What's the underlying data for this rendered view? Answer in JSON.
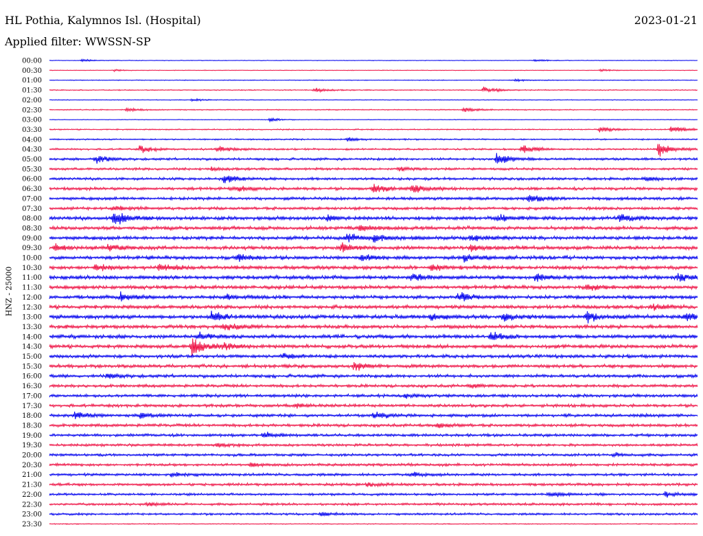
{
  "header": {
    "station": "HL Pothia, Kalymnos Isl. (Hospital)",
    "date": "2023-01-21",
    "filter": "Applied filter: WWSSN-SP"
  },
  "chart_data": {
    "type": "line",
    "subtype": "helicorder",
    "ylabel": "HNZ - 25000",
    "minutes_per_line": 30,
    "line_colors": [
      "#0000ee",
      "#ee1144"
    ],
    "rows": [
      {
        "label": "00:00",
        "noise": 0.5,
        "events": [
          {
            "t": 0.05,
            "amp": 2
          },
          {
            "t": 0.75,
            "amp": 2
          }
        ]
      },
      {
        "label": "00:30",
        "noise": 0.5,
        "events": [
          {
            "t": 0.1,
            "amp": 1.5
          },
          {
            "t": 0.85,
            "amp": 2
          }
        ]
      },
      {
        "label": "01:00",
        "noise": 0.6,
        "events": [
          {
            "t": 0.72,
            "amp": 2
          }
        ]
      },
      {
        "label": "01:30",
        "noise": 0.8,
        "events": [
          {
            "t": 0.41,
            "amp": 4
          },
          {
            "t": 0.67,
            "amp": 5
          }
        ]
      },
      {
        "label": "02:00",
        "noise": 0.6,
        "events": [
          {
            "t": 0.22,
            "amp": 2
          }
        ]
      },
      {
        "label": "02:30",
        "noise": 0.8,
        "events": [
          {
            "t": 0.12,
            "amp": 3
          },
          {
            "t": 0.64,
            "amp": 5
          }
        ]
      },
      {
        "label": "03:00",
        "noise": 0.5,
        "events": [
          {
            "t": 0.34,
            "amp": 3
          }
        ]
      },
      {
        "label": "03:30",
        "noise": 1.0,
        "events": [
          {
            "t": 0.85,
            "amp": 5
          },
          {
            "t": 0.96,
            "amp": 7
          }
        ]
      },
      {
        "label": "04:00",
        "noise": 1.2,
        "events": [
          {
            "t": 0.46,
            "amp": 3
          }
        ]
      },
      {
        "label": "04:30",
        "noise": 1.5,
        "events": [
          {
            "t": 0.14,
            "amp": 6
          },
          {
            "t": 0.26,
            "amp": 5
          },
          {
            "t": 0.73,
            "amp": 9
          },
          {
            "t": 0.94,
            "amp": 12
          }
        ]
      },
      {
        "label": "05:00",
        "noise": 2.0,
        "events": [
          {
            "t": 0.07,
            "amp": 8
          },
          {
            "t": 0.69,
            "amp": 10
          }
        ]
      },
      {
        "label": "05:30",
        "noise": 2.0,
        "events": [
          {
            "t": 0.25,
            "amp": 3
          },
          {
            "t": 0.54,
            "amp": 3
          }
        ]
      },
      {
        "label": "06:00",
        "noise": 2.2,
        "events": [
          {
            "t": 0.27,
            "amp": 8
          },
          {
            "t": 0.92,
            "amp": 3
          }
        ]
      },
      {
        "label": "06:30",
        "noise": 2.5,
        "events": [
          {
            "t": 0.29,
            "amp": 4
          },
          {
            "t": 0.5,
            "amp": 9
          },
          {
            "t": 0.56,
            "amp": 7
          }
        ]
      },
      {
        "label": "07:00",
        "noise": 2.5,
        "events": [
          {
            "t": 0.74,
            "amp": 7
          }
        ]
      },
      {
        "label": "07:30",
        "noise": 2.5,
        "events": [
          {
            "t": 0.1,
            "amp": 4
          }
        ]
      },
      {
        "label": "08:00",
        "noise": 3.0,
        "events": [
          {
            "t": 0.1,
            "amp": 14
          },
          {
            "t": 0.43,
            "amp": 4
          },
          {
            "t": 0.69,
            "amp": 6
          },
          {
            "t": 0.88,
            "amp": 7
          }
        ]
      },
      {
        "label": "08:30",
        "noise": 3.0,
        "events": [
          {
            "t": 0.48,
            "amp": 6
          }
        ]
      },
      {
        "label": "09:00",
        "noise": 3.0,
        "events": [
          {
            "t": 0.46,
            "amp": 7
          },
          {
            "t": 0.5,
            "amp": 6
          },
          {
            "t": 0.65,
            "amp": 5
          }
        ]
      },
      {
        "label": "09:30",
        "noise": 3.0,
        "events": [
          {
            "t": 0.01,
            "amp": 5
          },
          {
            "t": 0.09,
            "amp": 6
          },
          {
            "t": 0.45,
            "amp": 7
          },
          {
            "t": 0.65,
            "amp": 5
          }
        ]
      },
      {
        "label": "10:00",
        "noise": 3.0,
        "events": [
          {
            "t": 0.29,
            "amp": 7
          },
          {
            "t": 0.48,
            "amp": 5
          },
          {
            "t": 0.64,
            "amp": 5
          }
        ]
      },
      {
        "label": "10:30",
        "noise": 3.0,
        "events": [
          {
            "t": 0.07,
            "amp": 7
          },
          {
            "t": 0.17,
            "amp": 7
          },
          {
            "t": 0.59,
            "amp": 5
          }
        ]
      },
      {
        "label": "11:00",
        "noise": 3.2,
        "events": [
          {
            "t": 0.56,
            "amp": 7
          },
          {
            "t": 0.75,
            "amp": 6
          },
          {
            "t": 0.97,
            "amp": 6
          }
        ]
      },
      {
        "label": "11:30",
        "noise": 3.0,
        "events": [
          {
            "t": 0.83,
            "amp": 6
          }
        ]
      },
      {
        "label": "12:00",
        "noise": 3.0,
        "events": [
          {
            "t": 0.11,
            "amp": 6
          },
          {
            "t": 0.27,
            "amp": 5
          },
          {
            "t": 0.63,
            "amp": 7
          }
        ]
      },
      {
        "label": "12:30",
        "noise": 3.0,
        "events": [
          {
            "t": 0.93,
            "amp": 5
          }
        ]
      },
      {
        "label": "13:00",
        "noise": 3.2,
        "events": [
          {
            "t": 0.25,
            "amp": 8
          },
          {
            "t": 0.59,
            "amp": 6
          },
          {
            "t": 0.7,
            "amp": 7
          },
          {
            "t": 0.83,
            "amp": 8
          },
          {
            "t": 0.98,
            "amp": 9
          }
        ]
      },
      {
        "label": "13:30",
        "noise": 3.0,
        "events": [
          {
            "t": 0.27,
            "amp": 6
          }
        ]
      },
      {
        "label": "14:00",
        "noise": 3.0,
        "events": [
          {
            "t": 0.23,
            "amp": 6
          },
          {
            "t": 0.68,
            "amp": 9
          }
        ]
      },
      {
        "label": "14:30",
        "noise": 3.0,
        "events": [
          {
            "t": 0.22,
            "amp": 16
          },
          {
            "t": 0.27,
            "amp": 5
          }
        ]
      },
      {
        "label": "15:00",
        "noise": 2.8,
        "events": [
          {
            "t": 0.36,
            "amp": 4
          }
        ]
      },
      {
        "label": "15:30",
        "noise": 2.8,
        "events": [
          {
            "t": 0.47,
            "amp": 8
          }
        ]
      },
      {
        "label": "16:00",
        "noise": 2.6,
        "events": [
          {
            "t": 0.09,
            "amp": 5
          }
        ]
      },
      {
        "label": "16:30",
        "noise": 2.5,
        "events": [
          {
            "t": 0.65,
            "amp": 3
          }
        ]
      },
      {
        "label": "17:00",
        "noise": 2.5,
        "events": [
          {
            "t": 0.55,
            "amp": 3
          }
        ]
      },
      {
        "label": "17:30",
        "noise": 2.5,
        "events": [
          {
            "t": 0.38,
            "amp": 3
          }
        ]
      },
      {
        "label": "18:00",
        "noise": 2.5,
        "events": [
          {
            "t": 0.04,
            "amp": 7
          },
          {
            "t": 0.14,
            "amp": 4
          },
          {
            "t": 0.5,
            "amp": 7
          }
        ]
      },
      {
        "label": "18:30",
        "noise": 2.5,
        "events": [
          {
            "t": 0.6,
            "amp": 4
          }
        ]
      },
      {
        "label": "19:00",
        "noise": 2.3,
        "events": [
          {
            "t": 0.33,
            "amp": 6
          }
        ]
      },
      {
        "label": "19:30",
        "noise": 2.2,
        "events": [
          {
            "t": 0.26,
            "amp": 3
          }
        ]
      },
      {
        "label": "20:00",
        "noise": 2.2,
        "events": [
          {
            "t": 0.87,
            "amp": 3
          }
        ]
      },
      {
        "label": "20:30",
        "noise": 2.2,
        "events": [
          {
            "t": 0.31,
            "amp": 3
          }
        ]
      },
      {
        "label": "21:00",
        "noise": 2.2,
        "events": [
          {
            "t": 0.19,
            "amp": 4
          },
          {
            "t": 0.56,
            "amp": 4
          }
        ]
      },
      {
        "label": "21:30",
        "noise": 2.2,
        "events": [
          {
            "t": 0.49,
            "amp": 3
          }
        ]
      },
      {
        "label": "22:00",
        "noise": 2.0,
        "events": [
          {
            "t": 0.77,
            "amp": 4
          },
          {
            "t": 0.95,
            "amp": 4
          }
        ]
      },
      {
        "label": "22:30",
        "noise": 2.0,
        "events": [
          {
            "t": 0.15,
            "amp": 3
          }
        ]
      },
      {
        "label": "23:00",
        "noise": 1.8,
        "events": [
          {
            "t": 0.42,
            "amp": 3
          }
        ]
      },
      {
        "label": "23:30",
        "noise": 0.8,
        "events": []
      }
    ]
  }
}
